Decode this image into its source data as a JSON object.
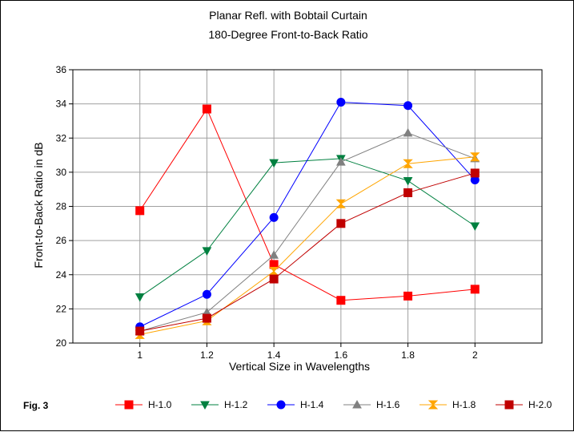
{
  "figure": {
    "label": "Fig. 3"
  },
  "chart_data": {
    "type": "line",
    "title": "Planar Refl. with Bobtail Curtain",
    "subtitle": "180-Degree Front-to-Back Ratio",
    "xlabel": "Vertical Size in Wavelengths",
    "ylabel": "Front-to-Back Ratio in dB",
    "x": [
      1,
      1.2,
      1.4,
      1.6,
      1.8,
      2
    ],
    "x_tick_labels": [
      "1",
      "1.2",
      "1.4",
      "1.6",
      "1.8",
      "2"
    ],
    "xlim": [
      0.8,
      2.2
    ],
    "ylim": [
      20,
      36
    ],
    "y_ticks": [
      20,
      22,
      24,
      26,
      28,
      30,
      32,
      34,
      36
    ],
    "y_tick_labels": [
      "20",
      "22",
      "24",
      "26",
      "28",
      "30",
      "32",
      "34",
      "36"
    ],
    "grid": true,
    "legend_position": "bottom",
    "series": [
      {
        "name": "H-1.0",
        "color": "#ff0000",
        "marker": "square",
        "values": [
          27.75,
          33.7,
          24.6,
          22.5,
          22.75,
          23.15
        ]
      },
      {
        "name": "H-1.2",
        "color": "#008040",
        "marker": "triangle-down",
        "values": [
          22.7,
          25.4,
          30.55,
          30.8,
          29.5,
          26.85
        ]
      },
      {
        "name": "H-1.4",
        "color": "#0000ff",
        "marker": "circle",
        "values": [
          20.95,
          22.85,
          27.35,
          34.1,
          33.9,
          29.55
        ]
      },
      {
        "name": "H-1.6",
        "color": "#808080",
        "marker": "triangle-up",
        "values": [
          20.7,
          21.8,
          25.15,
          30.6,
          32.3,
          30.8
        ]
      },
      {
        "name": "H-1.8",
        "color": "#ffa500",
        "marker": "hourglass",
        "values": [
          20.5,
          21.3,
          24.2,
          28.15,
          30.5,
          30.9
        ]
      },
      {
        "name": "H-2.0",
        "color": "#c00000",
        "marker": "square",
        "values": [
          20.7,
          21.45,
          23.75,
          27.0,
          28.8,
          29.95
        ]
      }
    ]
  }
}
